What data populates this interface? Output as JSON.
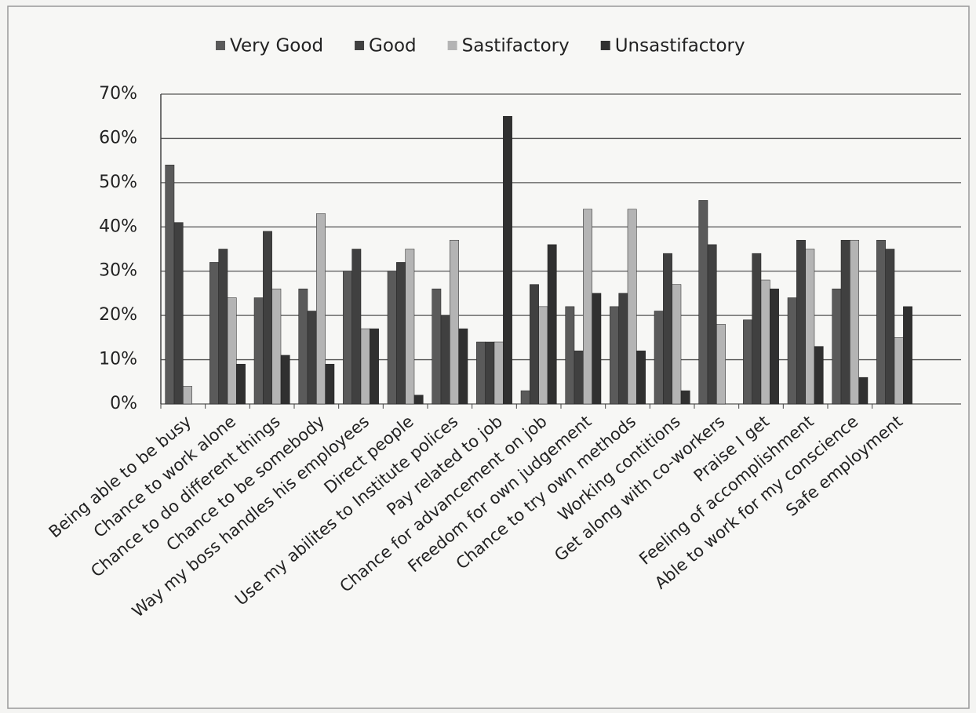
{
  "chart_data": {
    "type": "bar",
    "categories": [
      "Being able to be busy",
      "Chance to work alone",
      "Chance to do different things",
      "Chance to be somebody",
      "Way my boss handles his employees",
      "Direct people",
      "Use my abilites to Institute polices",
      "Pay related to job",
      "Chance for advancement on job",
      "Freedom for own judgement",
      "Chance to try own methods",
      "Working contitions",
      "Get along with co-workers",
      "Praise I get",
      "Feeling of accomplishment",
      "Able to work for my conscience",
      "Safe employment"
    ],
    "series": [
      {
        "name": "Very Good",
        "color": "#5a5a5a",
        "values": [
          54,
          32,
          24,
          26,
          30,
          30,
          26,
          14,
          3,
          22,
          22,
          21,
          46,
          19,
          24,
          26,
          37
        ]
      },
      {
        "name": "Good",
        "color": "#404040",
        "values": [
          41,
          35,
          39,
          21,
          35,
          32,
          20,
          14,
          27,
          12,
          25,
          34,
          36,
          34,
          37,
          37,
          35
        ]
      },
      {
        "name": "Sastifactory",
        "color": "#b4b4b4",
        "values": [
          4,
          24,
          26,
          43,
          17,
          35,
          37,
          14,
          22,
          44,
          44,
          27,
          18,
          28,
          35,
          37,
          15
        ]
      },
      {
        "name": "Unsastifactory",
        "color": "#303030",
        "values": [
          0,
          9,
          11,
          9,
          17,
          2,
          17,
          65,
          36,
          25,
          12,
          3,
          0,
          26,
          13,
          6,
          22
        ]
      }
    ],
    "ylim": [
      0,
      70
    ],
    "yticks": [
      {
        "value": 0,
        "label": "0%"
      },
      {
        "value": 10,
        "label": "10%"
      },
      {
        "value": 20,
        "label": "20%"
      },
      {
        "value": 30,
        "label": "30%"
      },
      {
        "value": 40,
        "label": "40%"
      },
      {
        "value": 50,
        "label": "50%"
      },
      {
        "value": 60,
        "label": "60%"
      },
      {
        "value": 70,
        "label": "70%"
      }
    ],
    "grid": true,
    "legend": "top"
  }
}
